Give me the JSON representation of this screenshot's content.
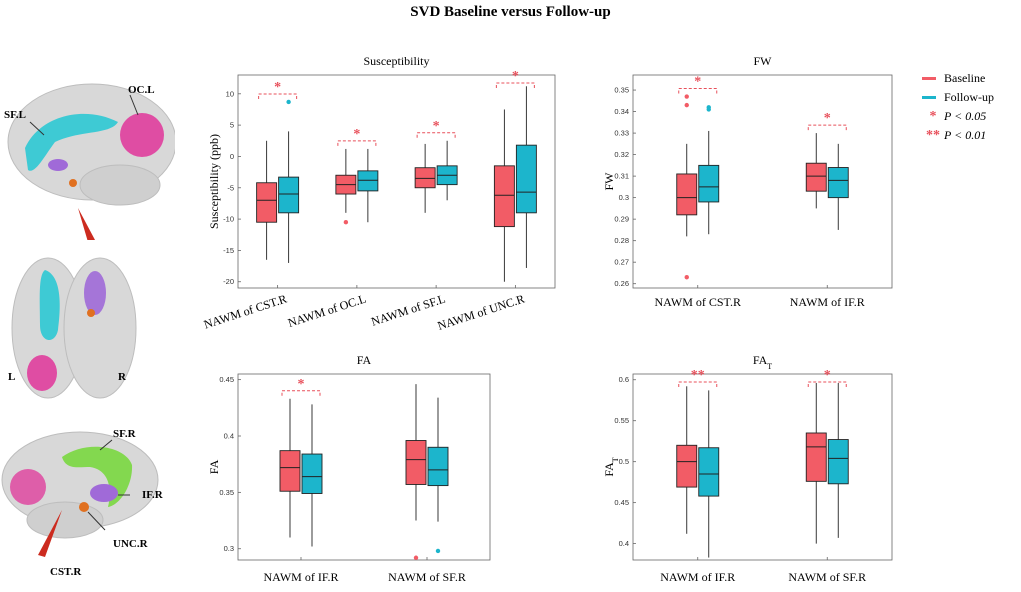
{
  "title": "SVD  Baseline versus Follow-up",
  "colors": {
    "baseline": "#f25c66",
    "followup": "#1cb5cc",
    "sig": "#e8505b"
  },
  "legend": {
    "baseline": "Baseline",
    "followup": "Follow-up",
    "p05_marker": "*",
    "p05": "P < 0.05",
    "p01_marker": "**",
    "p01": "P < 0.01"
  },
  "brains": {
    "sagittal_left": {
      "labels": [
        "SF.L",
        "OC.L"
      ]
    },
    "axial": {
      "labels": [
        "L",
        "R"
      ]
    },
    "sagittal_right": {
      "labels": [
        "SF.R",
        "IF.R",
        "UNC.R",
        "CST.R"
      ]
    }
  },
  "chart_data": [
    {
      "type": "box",
      "title": "Susceptibility",
      "ylabel": "Susceptibility (ppb)",
      "ylim": [
        -21,
        13
      ],
      "yticks": [
        10,
        5,
        0,
        -5,
        -10,
        -15,
        -20
      ],
      "categories": [
        "NAWM of CST.R",
        "NAWM of OC.L",
        "NAWM of SF.L",
        "NAWM of UNC.R"
      ],
      "x_rotated": true,
      "series": [
        {
          "name": "Baseline",
          "boxes": [
            {
              "min": -16.5,
              "q1": -10.5,
              "median": -7,
              "q3": -4.2,
              "max": 2.5,
              "outliers": []
            },
            {
              "min": -9,
              "q1": -6,
              "median": -4.5,
              "q3": -3,
              "max": 1.2,
              "outliers": [
                -10.5
              ]
            },
            {
              "min": -9,
              "q1": -5,
              "median": -3.5,
              "q3": -1.8,
              "max": 2,
              "outliers": []
            },
            {
              "min": -20,
              "q1": -11.2,
              "median": -6.2,
              "q3": -1.5,
              "max": 7.5,
              "outliers": []
            }
          ]
        },
        {
          "name": "Follow-up",
          "boxes": [
            {
              "min": -17,
              "q1": -9,
              "median": -6,
              "q3": -3.3,
              "max": 4,
              "outliers": [
                8.7
              ]
            },
            {
              "min": -10.5,
              "q1": -5.5,
              "median": -3.8,
              "q3": -2.3,
              "max": 1.2,
              "outliers": []
            },
            {
              "min": -7,
              "q1": -4.5,
              "median": -3,
              "q3": -1.5,
              "max": 2.5,
              "outliers": []
            },
            {
              "min": -17.8,
              "q1": -9,
              "median": -5.7,
              "q3": 1.8,
              "max": 11.2,
              "outliers": []
            }
          ]
        }
      ],
      "significance": [
        "*",
        "*",
        "*",
        "*"
      ]
    },
    {
      "type": "box",
      "title": "FW",
      "ylabel": "FW",
      "ylim": [
        0.258,
        0.357
      ],
      "yticks": [
        0.35,
        0.34,
        0.33,
        0.32,
        0.31,
        0.3,
        0.29,
        0.28,
        0.27,
        0.26
      ],
      "categories": [
        "NAWM of  CST.R",
        "NAWM of  IF.R"
      ],
      "series": [
        {
          "name": "Baseline",
          "boxes": [
            {
              "min": 0.282,
              "q1": 0.292,
              "median": 0.3,
              "q3": 0.311,
              "max": 0.325,
              "outliers": [
                0.343,
                0.347,
                0.263
              ]
            },
            {
              "min": 0.295,
              "q1": 0.303,
              "median": 0.31,
              "q3": 0.316,
              "max": 0.33,
              "outliers": []
            }
          ]
        },
        {
          "name": "Follow-up",
          "boxes": [
            {
              "min": 0.283,
              "q1": 0.298,
              "median": 0.305,
              "q3": 0.315,
              "max": 0.331,
              "outliers": [
                0.341,
                0.342
              ]
            },
            {
              "min": 0.285,
              "q1": 0.3,
              "median": 0.308,
              "q3": 0.314,
              "max": 0.325,
              "outliers": []
            }
          ]
        }
      ],
      "significance": [
        "*",
        "*"
      ]
    },
    {
      "type": "box",
      "title": "FA",
      "ylabel": "FA",
      "ylim": [
        0.29,
        0.455
      ],
      "yticks": [
        0.45,
        0.4,
        0.35,
        0.3
      ],
      "categories": [
        "NAWM of  IF.R",
        "NAWM of  SF.R"
      ],
      "series": [
        {
          "name": "Baseline",
          "boxes": [
            {
              "min": 0.31,
              "q1": 0.351,
              "median": 0.372,
              "q3": 0.387,
              "max": 0.433,
              "outliers": []
            },
            {
              "min": 0.325,
              "q1": 0.357,
              "median": 0.379,
              "q3": 0.396,
              "max": 0.446,
              "outliers": [
                0.292
              ]
            }
          ]
        },
        {
          "name": "Follow-up",
          "boxes": [
            {
              "min": 0.302,
              "q1": 0.349,
              "median": 0.364,
              "q3": 0.384,
              "max": 0.428,
              "outliers": []
            },
            {
              "min": 0.324,
              "q1": 0.356,
              "median": 0.37,
              "q3": 0.39,
              "max": 0.434,
              "outliers": [
                0.298
              ]
            }
          ]
        }
      ],
      "significance": [
        "*",
        ""
      ]
    },
    {
      "type": "box",
      "title": "FA",
      "title_sub": "T",
      "ylabel": "FA",
      "ylabel_sub": "T",
      "ylim": [
        0.38,
        0.607
      ],
      "yticks": [
        0.6,
        0.55,
        0.5,
        0.45,
        0.4
      ],
      "categories": [
        "NAWM of  IF.R",
        "NAWM of  SF.R"
      ],
      "series": [
        {
          "name": "Baseline",
          "boxes": [
            {
              "min": 0.412,
              "q1": 0.469,
              "median": 0.5,
              "q3": 0.52,
              "max": 0.592,
              "outliers": []
            },
            {
              "min": 0.4,
              "q1": 0.476,
              "median": 0.518,
              "q3": 0.535,
              "max": 0.596,
              "outliers": []
            }
          ]
        },
        {
          "name": "Follow-up",
          "boxes": [
            {
              "min": 0.383,
              "q1": 0.458,
              "median": 0.485,
              "q3": 0.517,
              "max": 0.587,
              "outliers": []
            },
            {
              "min": 0.407,
              "q1": 0.473,
              "median": 0.504,
              "q3": 0.527,
              "max": 0.596,
              "outliers": []
            }
          ]
        }
      ],
      "significance": [
        "**",
        "*"
      ]
    }
  ]
}
